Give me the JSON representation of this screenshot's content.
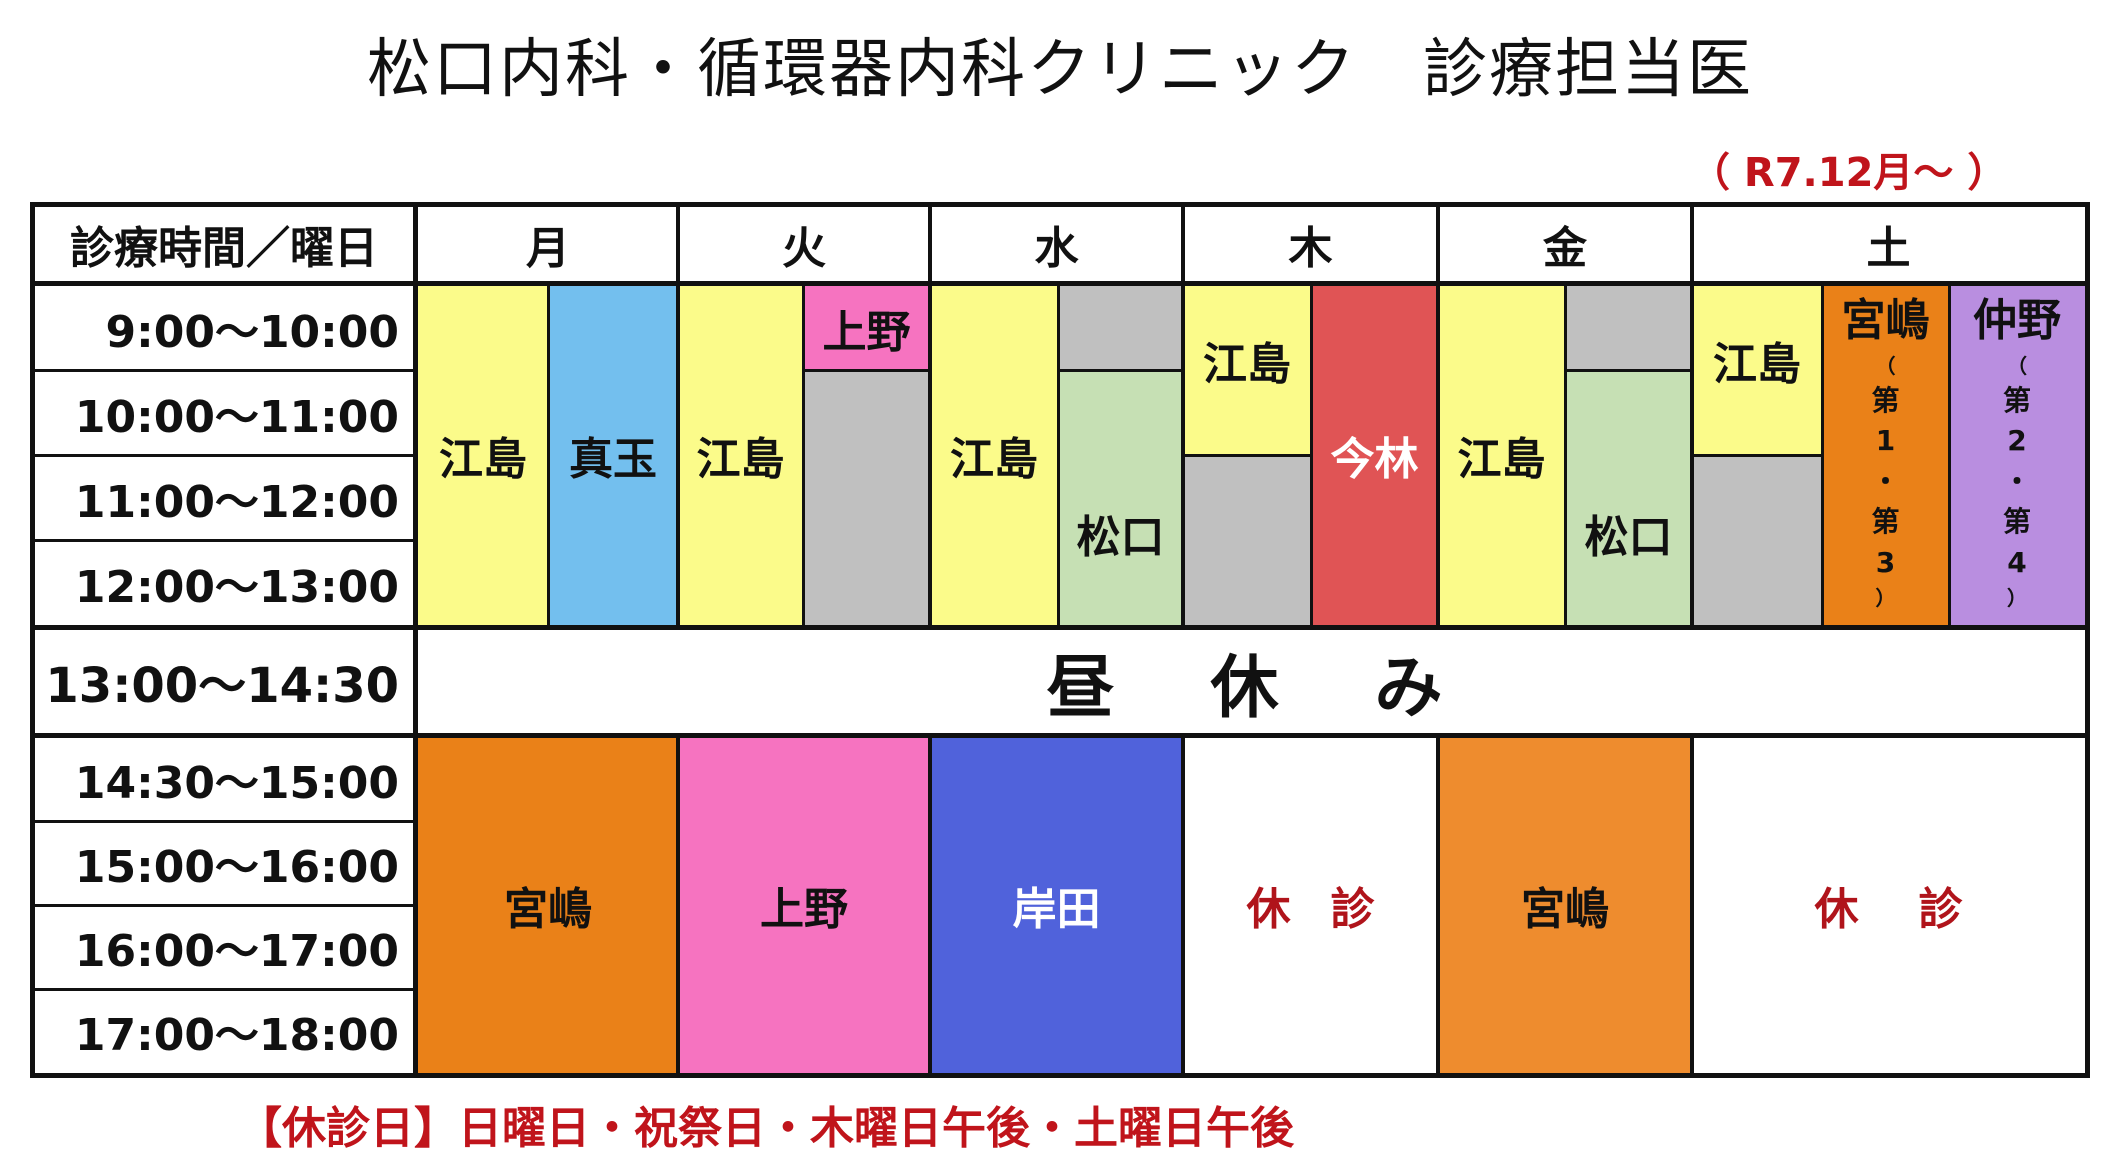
{
  "title": "松口内科・循環器内科クリニック　診療担当医",
  "date_note": "（ R7.12月〜 ）",
  "header": {
    "corner": "診療時間／曜日",
    "days": [
      "月",
      "火",
      "水",
      "木",
      "金",
      "土"
    ]
  },
  "morning_times": [
    "9:00〜10:00",
    "10:00〜11:00",
    "11:00〜12:00",
    "12:00〜13:00"
  ],
  "lunch": {
    "time": "13:00〜14:30",
    "label": "昼　休　み"
  },
  "afternoon_times": [
    "14:30〜15:00",
    "15:00〜16:00",
    "16:00〜17:00",
    "17:00〜18:00"
  ],
  "morning": {
    "mon": [
      "江島",
      "真玉"
    ],
    "tue": [
      "江島",
      "上野"
    ],
    "wed": [
      "江島",
      "松口"
    ],
    "thu": [
      "江島",
      "今林"
    ],
    "fri": [
      "江島",
      "松口"
    ],
    "sat": {
      "a": "江島",
      "b": "宮嶋",
      "b_note": [
        "第",
        "1",
        "・",
        "第",
        "3"
      ],
      "c": "仲野",
      "c_note": [
        "第",
        "2",
        "・",
        "第",
        "4"
      ]
    }
  },
  "afternoon": {
    "mon": "宮嶋",
    "tue": "上野",
    "wed": "岸田",
    "thu": "休診",
    "fri": "宮嶋",
    "sat": "休診"
  },
  "footer": "【休診日】日曜日・祝祭日・木曜日午後・土曜日午後",
  "colors": {
    "yellow": "#fbfb8a",
    "blue": "#73bfee",
    "pink": "#f673c0",
    "gray": "#c0c0c0",
    "green": "#c6e0b4",
    "red": "#e05455",
    "orange": "#ea8118",
    "orange_fri": "#ee8c2e",
    "purple": "#b98ee0",
    "indigo": "#5062db",
    "closed_text": "#b0141b"
  }
}
